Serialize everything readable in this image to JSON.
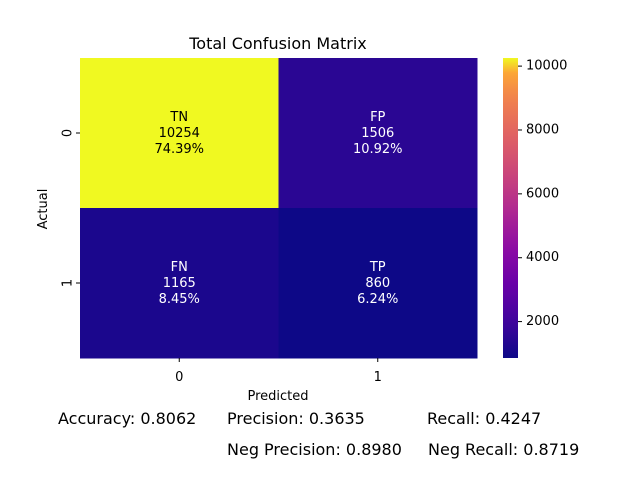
{
  "chart_data": {
    "type": "heatmap",
    "title": "Total Confusion Matrix",
    "xlabel": "Predicted",
    "ylabel": "Actual",
    "x_categories": [
      "0",
      "1"
    ],
    "y_categories": [
      "0",
      "1"
    ],
    "cells": [
      {
        "row": 0,
        "col": 0,
        "label": "TN",
        "value": 10254,
        "value_text": "10254",
        "percent": "74.39%"
      },
      {
        "row": 0,
        "col": 1,
        "label": "FP",
        "value": 1506,
        "value_text": "1506",
        "percent": "10.92%"
      },
      {
        "row": 1,
        "col": 0,
        "label": "FN",
        "value": 1165,
        "value_text": "1165",
        "percent": "8.45%"
      },
      {
        "row": 1,
        "col": 1,
        "label": "TP",
        "value": 860,
        "value_text": "860",
        "percent": "6.24%"
      }
    ],
    "colormap": "plasma",
    "color_range": [
      860,
      10254
    ],
    "colorbar_ticks": [
      2000,
      4000,
      6000,
      8000,
      10000
    ],
    "colorbar_tick_labels": [
      "2000",
      "4000",
      "6000",
      "8000",
      "10000"
    ]
  },
  "metrics": {
    "accuracy": "Accuracy: 0.8062",
    "precision": "Precision: 0.3635",
    "recall": "Recall: 0.4247",
    "neg_precision": "Neg Precision: 0.8980",
    "neg_recall": "Neg Recall: 0.8719"
  }
}
